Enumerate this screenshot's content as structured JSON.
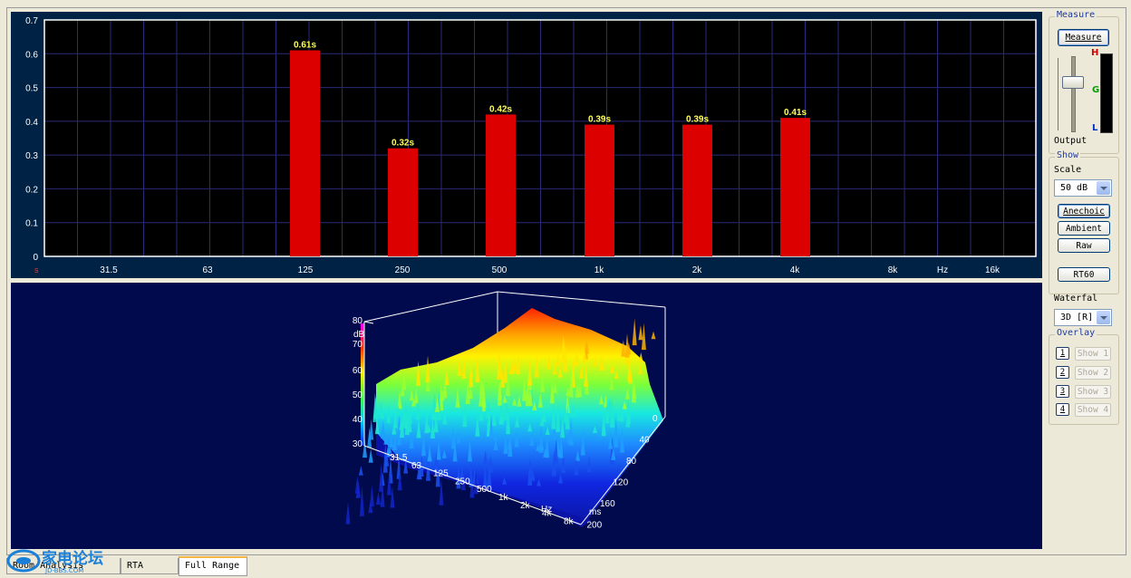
{
  "rt60_chart": {
    "chart_data": {
      "type": "bar",
      "categories": [
        "125",
        "250",
        "500",
        "1k",
        "2k",
        "4k"
      ],
      "values": [
        0.61,
        0.32,
        0.42,
        0.39,
        0.39,
        0.41
      ],
      "data_labels": [
        "0.61s",
        "0.32s",
        "0.42s",
        "0.39s",
        "0.39s",
        "0.41s"
      ],
      "ylim": [
        0,
        0.7
      ],
      "y_ticks": [
        "0",
        "0.1",
        "0.2",
        "0.3",
        "0.4",
        "0.5",
        "0.6",
        "0.7"
      ],
      "x_ticks": [
        "31.5",
        "63",
        "125",
        "250",
        "500",
        "1k",
        "2k",
        "4k",
        "8k",
        "Hz",
        "16k"
      ],
      "y_unit": "s",
      "grid": true,
      "colors": {
        "background": "#000000",
        "grid": "#2A2A78",
        "bar": "#DD0000",
        "label": "#FFFF55",
        "axis_text": "#FFFFFF",
        "panel": "#002244"
      }
    }
  },
  "waterfall": {
    "db_ticks": [
      "80",
      "70",
      "60",
      "50",
      "40",
      "30"
    ],
    "db_unit": "dB",
    "freq_ticks": [
      "31.5",
      "63",
      "125",
      "250",
      "500",
      "1k",
      "2k",
      "4k",
      "8k"
    ],
    "freq_unit": "Hz",
    "time_ticks": [
      "0",
      "40",
      "80",
      "120",
      "160",
      "200"
    ],
    "time_unit": "ms"
  },
  "side_panel": {
    "measure_group": "Measure",
    "measure_button": "Measure",
    "level_h": "H",
    "level_g": "G",
    "level_l": "L",
    "output_label": "Output",
    "show_group": "Show",
    "scale_label": "Scale",
    "scale_value": "50 dB",
    "anechoic_button": "Anechoic",
    "ambient_button": "Ambient",
    "raw_button": "Raw",
    "rt60_button": "RT60",
    "waterfall_label": "Waterfal",
    "waterfall_value": "3D [R]",
    "overlay_group": "Overlay",
    "overlays": [
      {
        "num": "1",
        "show": "Show 1"
      },
      {
        "num": "2",
        "show": "Show 2"
      },
      {
        "num": "3",
        "show": "Show 3"
      },
      {
        "num": "4",
        "show": "Show 4"
      }
    ]
  },
  "tabs": [
    {
      "label": "Room Analysis"
    },
    {
      "label": "RTA"
    },
    {
      "label": "Full Range"
    }
  ],
  "watermark": {
    "name": "家电论坛",
    "site": "JD-BBS.COM"
  }
}
